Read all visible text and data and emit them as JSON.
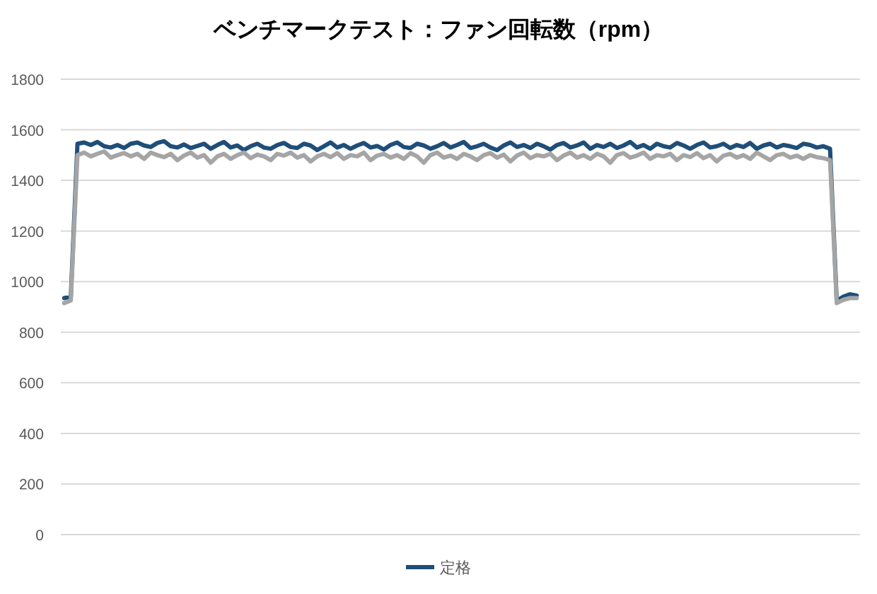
{
  "chart_data": {
    "type": "line",
    "title": "ベンチマークテスト：ファン回転数（rpm）",
    "categories": [
      null,
      null,
      null,
      null,
      null,
      null,
      null,
      null,
      null,
      null,
      null,
      null,
      null,
      null,
      null,
      null,
      null,
      null,
      null,
      null,
      null,
      null,
      null,
      null,
      null,
      null,
      null,
      null,
      null,
      null,
      null,
      null,
      null,
      null,
      null,
      null,
      null,
      null,
      null,
      null,
      null,
      null,
      null,
      null,
      null,
      null,
      null,
      null,
      null,
      null,
      null,
      null,
      null,
      null,
      null,
      null,
      null,
      null,
      null,
      null,
      null,
      null,
      null,
      null,
      null,
      null,
      null,
      null,
      null,
      null,
      null,
      null,
      null,
      null,
      null,
      null,
      null,
      null,
      null,
      null,
      null,
      null,
      null,
      null,
      null,
      null,
      null,
      null,
      null,
      null,
      null,
      null,
      null,
      null,
      null,
      null,
      null,
      null,
      null,
      null,
      null,
      null,
      null,
      null,
      null,
      null,
      null,
      null,
      null,
      null,
      null,
      null,
      null,
      null,
      null,
      null,
      null,
      null,
      null,
      null
    ],
    "series": [
      {
        "name": "定格",
        "color": "#1f4e79",
        "values": [
          935,
          940,
          1545,
          1550,
          1540,
          1552,
          1535,
          1530,
          1540,
          1528,
          1545,
          1550,
          1538,
          1532,
          1548,
          1555,
          1535,
          1530,
          1542,
          1528,
          1536,
          1545,
          1525,
          1540,
          1552,
          1530,
          1538,
          1520,
          1535,
          1545,
          1530,
          1525,
          1540,
          1548,
          1532,
          1528,
          1545,
          1538,
          1520,
          1535,
          1550,
          1530,
          1540,
          1525,
          1538,
          1548,
          1530,
          1536,
          1522,
          1540,
          1550,
          1532,
          1528,
          1545,
          1538,
          1525,
          1535,
          1548,
          1530,
          1540,
          1552,
          1528,
          1535,
          1545,
          1530,
          1520,
          1538,
          1550,
          1532,
          1540,
          1528,
          1545,
          1535,
          1522,
          1540,
          1548,
          1530,
          1538,
          1550,
          1525,
          1540,
          1532,
          1545,
          1528,
          1538,
          1552,
          1530,
          1540,
          1525,
          1545,
          1535,
          1530,
          1548,
          1538,
          1525,
          1540,
          1550,
          1530,
          1535,
          1545,
          1528,
          1540,
          1532,
          1548,
          1525,
          1538,
          1545,
          1530,
          1540,
          1535,
          1528,
          1545,
          1540,
          1530,
          1535,
          1525,
          925,
          940,
          950,
          945
        ]
      },
      {
        "color": "#a5a5a5",
        "values": [
          915,
          925,
          1500,
          1510,
          1495,
          1505,
          1515,
          1490,
          1500,
          1508,
          1495,
          1505,
          1485,
          1510,
          1500,
          1492,
          1505,
          1480,
          1498,
          1510,
          1490,
          1500,
          1470,
          1495,
          1505,
          1485,
          1500,
          1510,
          1488,
          1502,
          1495,
          1480,
          1505,
          1498,
          1510,
          1490,
          1500,
          1475,
          1495,
          1505,
          1492,
          1508,
          1485,
          1500,
          1495,
          1510,
          1480,
          1498,
          1505,
          1490,
          1500,
          1485,
          1508,
          1495,
          1470,
          1500,
          1510,
          1490,
          1498,
          1485,
          1505,
          1495,
          1480,
          1500,
          1508,
          1490,
          1502,
          1475,
          1498,
          1510,
          1488,
          1500,
          1495,
          1505,
          1480,
          1498,
          1510,
          1490,
          1500,
          1485,
          1505,
          1495,
          1470,
          1500,
          1508,
          1490,
          1498,
          1510,
          1485,
          1500,
          1495,
          1505,
          1480,
          1500,
          1492,
          1508,
          1488,
          1500,
          1475,
          1498,
          1505,
          1490,
          1500,
          1485,
          1510,
          1495,
          1480,
          1500,
          1505,
          1490,
          1498,
          1485,
          1500,
          1492,
          1488,
          1480,
          915,
          928,
          935,
          935
        ]
      }
    ],
    "ylim": [
      0,
      1800
    ],
    "yticks": [
      0,
      200,
      400,
      600,
      800,
      1000,
      1200,
      1400,
      1600,
      1800
    ],
    "grid": "y",
    "legend": "bottom"
  }
}
